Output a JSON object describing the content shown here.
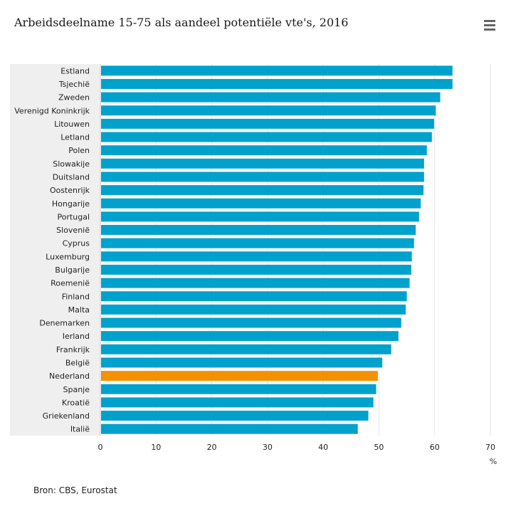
{
  "title": "Arbeidsdeelname 15-75 als aandeel potentiële vte's, 2016",
  "source": "Bron: CBS, Eurostat",
  "menu_icon": "hamburger-menu-icon",
  "colors": {
    "bar": "#00a1cd",
    "highlight": "#f39200",
    "grid": "#e6e6e6",
    "label_bg": "#efefef"
  },
  "chart_data": {
    "type": "bar",
    "orientation": "horizontal",
    "categories": [
      "Estland",
      "Tsjechië",
      "Zweden",
      "Verenigd Koninkrijk",
      "Litouwen",
      "Letland",
      "Polen",
      "Slowakije",
      "Duitsland",
      "Oostenrijk",
      "Hongarije",
      "Portugal",
      "Slovenië",
      "Cyprus",
      "Luxemburg",
      "Bulgarije",
      "Roemenië",
      "Finland",
      "Malta",
      "Denemarken",
      "Ierland",
      "Frankrijk",
      "België",
      "Nederland",
      "Spanje",
      "Kroatië",
      "Griekenland",
      "Italië"
    ],
    "values": [
      63.2,
      63.2,
      61.0,
      60.2,
      59.9,
      59.5,
      58.6,
      58.1,
      58.1,
      58.0,
      57.5,
      57.2,
      56.6,
      56.3,
      55.9,
      55.8,
      55.5,
      55.0,
      54.8,
      54.0,
      53.5,
      52.2,
      50.6,
      49.8,
      49.5,
      49.0,
      48.1,
      46.2
    ],
    "highlight": "Nederland",
    "xlim": [
      0,
      70
    ],
    "xticks": [
      "0",
      "10",
      "20",
      "30",
      "40",
      "50",
      "60",
      "70"
    ],
    "xunit": "%",
    "grid": true
  }
}
